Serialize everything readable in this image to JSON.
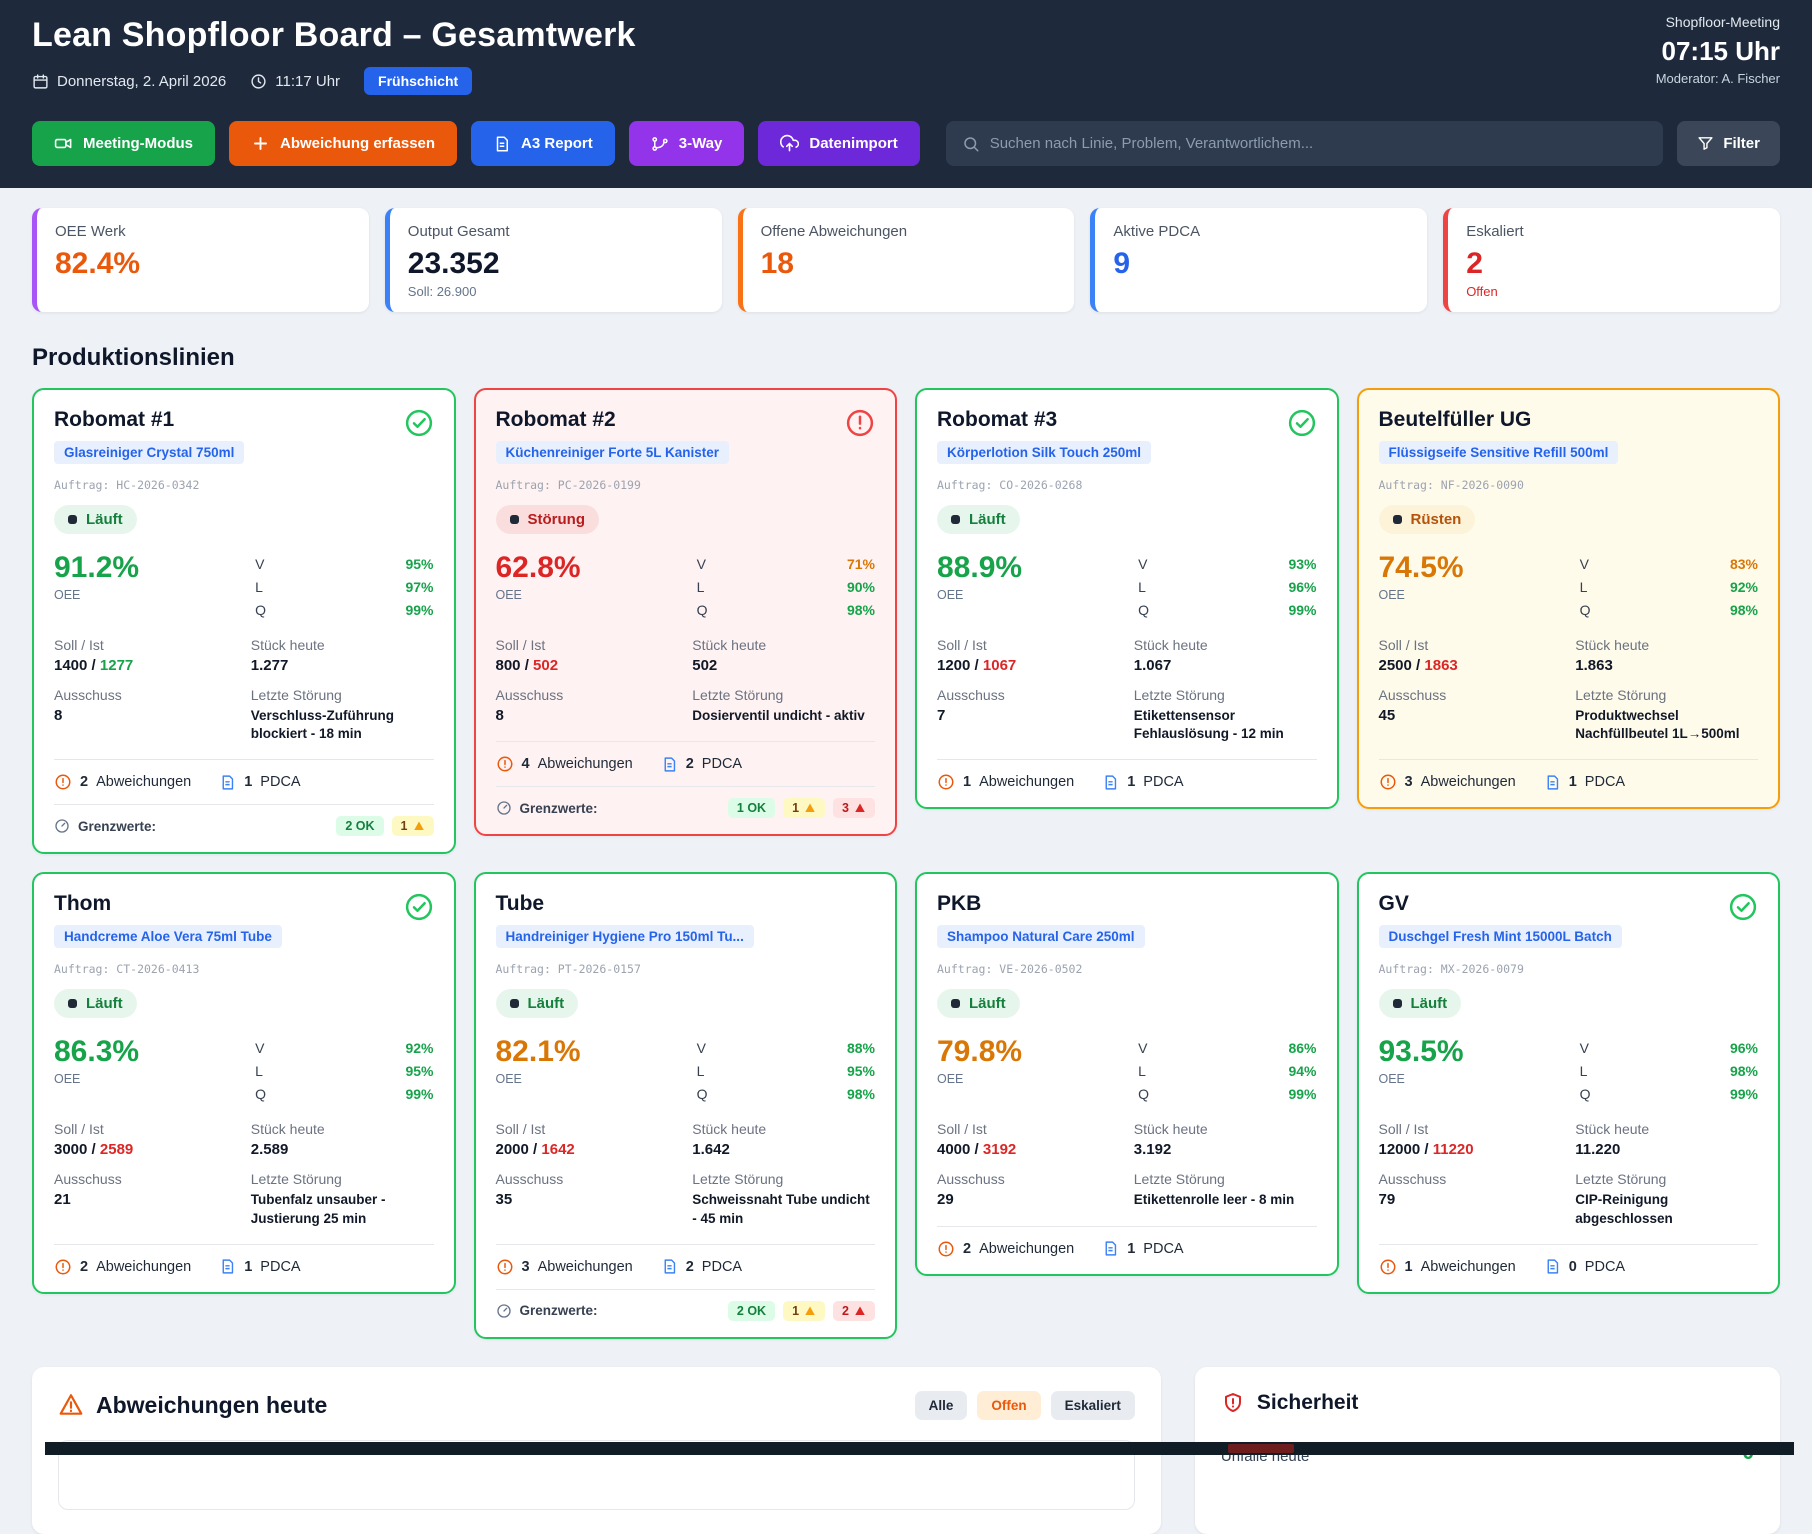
{
  "theme": {
    "header_bg": "#1e293b",
    "accent_green": "#22c55e",
    "accent_red": "#ef4444",
    "accent_amber": "#f59e0b",
    "bg_red_tint": "#fef2f2",
    "bg_amber_tint": "#fffbeb",
    "bg_white": "#ffffff",
    "val_green": "#16a34a",
    "val_red": "#dc2626",
    "val_amber": "#d97706",
    "val_dark": "#0f172a",
    "val_blue": "#2563eb",
    "val_orange": "#ea580c"
  },
  "header": {
    "title": "Lean Shopfloor Board – Gesamtwerk",
    "date": "Donnerstag, 2. April 2026",
    "time": "11:17 Uhr",
    "shift": "Frühschicht",
    "meeting_label": "Shopfloor-Meeting",
    "meeting_time": "07:15 Uhr",
    "moderator": "Moderator: A. Fischer"
  },
  "toolbar": {
    "buttons": [
      {
        "label": "Meeting-Modus",
        "icon": "video-icon",
        "color": "#16a34a"
      },
      {
        "label": "Abweichung erfassen",
        "icon": "plus-icon",
        "color": "#ea580c"
      },
      {
        "label": "A3 Report",
        "icon": "document-icon",
        "color": "#2563eb"
      },
      {
        "label": "3-Way",
        "icon": "branch-icon",
        "color": "#9333ea"
      },
      {
        "label": "Datenimport",
        "icon": "upload-cloud-icon",
        "color": "#6d28d9"
      }
    ],
    "search_placeholder": "Suchen nach Linie, Problem, Verantwortlichem...",
    "filter_label": "Filter"
  },
  "kpis": [
    {
      "label": "OEE Werk",
      "value": "82.4%",
      "sub": "",
      "accent": "#a855f7",
      "value_color": "#ea580c"
    },
    {
      "label": "Output Gesamt",
      "value": "23.352",
      "sub": "Soll: 26.900",
      "accent": "#3b82f6",
      "value_color": "#0f172a"
    },
    {
      "label": "Offene Abweichungen",
      "value": "18",
      "sub": "",
      "accent": "#f97316",
      "value_color": "#ea580c"
    },
    {
      "label": "Aktive PDCA",
      "value": "9",
      "sub": "",
      "accent": "#3b82f6",
      "value_color": "#2563eb"
    },
    {
      "label": "Eskaliert",
      "value": "2",
      "sub": "Offen",
      "accent": "#ef4444",
      "value_color": "#dc2626",
      "sub_red": true
    }
  ],
  "section_title": "Produktionslinien",
  "labels": {
    "oee": "OEE",
    "soll_ist": "Soll / Ist",
    "stueck": "Stück heute",
    "ausschuss": "Ausschuss",
    "stoerung": "Letzte Störung",
    "abweichungen": "Abweichungen",
    "pdca": "PDCA",
    "grenzwerte": "Grenzwerte:"
  },
  "lines": [
    {
      "name": "Robomat #1",
      "accent": "green",
      "icon": "check",
      "product": "Glasreiniger Crystal 750ml",
      "auftrag": "Auftrag: HC-2026-0342",
      "status": {
        "label": "Läuft",
        "type": "ok"
      },
      "oee": {
        "value": "91.2%",
        "state": "green"
      },
      "vlq": [
        {
          "k": "V",
          "v": "95%",
          "state": "green"
        },
        {
          "k": "L",
          "v": "97%",
          "state": "green"
        },
        {
          "k": "Q",
          "v": "99%",
          "state": "green"
        }
      ],
      "soll": "1400",
      "ist": "1277",
      "ist_state": "green",
      "stueck": "1.277",
      "ausschuss": "8",
      "stoerung": "Verschluss-Zuführung blockiert - 18 min",
      "abw": "2",
      "pdca": "1",
      "grenzwerte": {
        "ok": "2 OK",
        "warn": "1",
        "crit": null
      }
    },
    {
      "name": "Robomat #2",
      "accent": "red",
      "icon": "alert",
      "product": "Küchenreiniger Forte 5L Kanister",
      "auftrag": "Auftrag: PC-2026-0199",
      "status": {
        "label": "Störung",
        "type": "error"
      },
      "oee": {
        "value": "62.8%",
        "state": "red"
      },
      "vlq": [
        {
          "k": "V",
          "v": "71%",
          "state": "amber"
        },
        {
          "k": "L",
          "v": "90%",
          "state": "green"
        },
        {
          "k": "Q",
          "v": "98%",
          "state": "green"
        }
      ],
      "soll": "800",
      "ist": "502",
      "ist_state": "red",
      "stueck": "502",
      "ausschuss": "8",
      "stoerung": "Dosierventil undicht - aktiv",
      "abw": "4",
      "pdca": "2",
      "grenzwerte": {
        "ok": "1 OK",
        "warn": "1",
        "crit": "3"
      }
    },
    {
      "name": "Robomat #3",
      "accent": "green",
      "icon": "check",
      "product": "Körperlotion Silk Touch 250ml",
      "auftrag": "Auftrag: CO-2026-0268",
      "status": {
        "label": "Läuft",
        "type": "ok"
      },
      "oee": {
        "value": "88.9%",
        "state": "green"
      },
      "vlq": [
        {
          "k": "V",
          "v": "93%",
          "state": "green"
        },
        {
          "k": "L",
          "v": "96%",
          "state": "green"
        },
        {
          "k": "Q",
          "v": "99%",
          "state": "green"
        }
      ],
      "soll": "1200",
      "ist": "1067",
      "ist_state": "red",
      "stueck": "1.067",
      "ausschuss": "7",
      "stoerung": "Etikettensensor Fehlauslösung - 12 min",
      "abw": "1",
      "pdca": "1",
      "grenzwerte": null
    },
    {
      "name": "Beutelfüller UG",
      "accent": "amber",
      "icon": "none",
      "product": "Flüssigseife Sensitive Refill 500ml",
      "auftrag": "Auftrag: NF-2026-0090",
      "status": {
        "label": "Rüsten",
        "type": "setup"
      },
      "oee": {
        "value": "74.5%",
        "state": "amber"
      },
      "vlq": [
        {
          "k": "V",
          "v": "83%",
          "state": "amber"
        },
        {
          "k": "L",
          "v": "92%",
          "state": "green"
        },
        {
          "k": "Q",
          "v": "98%",
          "state": "green"
        }
      ],
      "soll": "2500",
      "ist": "1863",
      "ist_state": "red",
      "stueck": "1.863",
      "ausschuss": "45",
      "stoerung": "Produktwechsel Nachfüllbeutel 1L→500ml",
      "abw": "3",
      "pdca": "1",
      "grenzwerte": null
    },
    {
      "name": "Thom",
      "accent": "green",
      "icon": "check",
      "product": "Handcreme Aloe Vera 75ml Tube",
      "auftrag": "Auftrag: CT-2026-0413",
      "status": {
        "label": "Läuft",
        "type": "ok"
      },
      "oee": {
        "value": "86.3%",
        "state": "green"
      },
      "vlq": [
        {
          "k": "V",
          "v": "92%",
          "state": "green"
        },
        {
          "k": "L",
          "v": "95%",
          "state": "green"
        },
        {
          "k": "Q",
          "v": "99%",
          "state": "green"
        }
      ],
      "soll": "3000",
      "ist": "2589",
      "ist_state": "red",
      "stueck": "2.589",
      "ausschuss": "21",
      "stoerung": "Tubenfalz unsauber - Justierung 25 min",
      "abw": "2",
      "pdca": "1",
      "grenzwerte": null
    },
    {
      "name": "Tube",
      "accent": "green",
      "icon": "none",
      "product": "Handreiniger Hygiene Pro 150ml Tu...",
      "auftrag": "Auftrag: PT-2026-0157",
      "status": {
        "label": "Läuft",
        "type": "ok"
      },
      "oee": {
        "value": "82.1%",
        "state": "amber"
      },
      "vlq": [
        {
          "k": "V",
          "v": "88%",
          "state": "green"
        },
        {
          "k": "L",
          "v": "95%",
          "state": "green"
        },
        {
          "k": "Q",
          "v": "98%",
          "state": "green"
        }
      ],
      "soll": "2000",
      "ist": "1642",
      "ist_state": "red",
      "stueck": "1.642",
      "ausschuss": "35",
      "stoerung": "Schweissnaht Tube undicht - 45 min",
      "abw": "3",
      "pdca": "2",
      "grenzwerte": {
        "ok": "2 OK",
        "warn": "1",
        "crit": "2"
      }
    },
    {
      "name": "PKB",
      "accent": "green",
      "icon": "none",
      "product": "Shampoo Natural Care 250ml",
      "auftrag": "Auftrag: VE-2026-0502",
      "status": {
        "label": "Läuft",
        "type": "ok"
      },
      "oee": {
        "value": "79.8%",
        "state": "amber"
      },
      "vlq": [
        {
          "k": "V",
          "v": "86%",
          "state": "green"
        },
        {
          "k": "L",
          "v": "94%",
          "state": "green"
        },
        {
          "k": "Q",
          "v": "99%",
          "state": "green"
        }
      ],
      "soll": "4000",
      "ist": "3192",
      "ist_state": "red",
      "stueck": "3.192",
      "ausschuss": "29",
      "stoerung": "Etikettenrolle leer - 8 min",
      "abw": "2",
      "pdca": "1",
      "grenzwerte": null
    },
    {
      "name": "GV",
      "accent": "green",
      "icon": "check",
      "product": "Duschgel Fresh Mint 15000L Batch",
      "auftrag": "Auftrag: MX-2026-0079",
      "status": {
        "label": "Läuft",
        "type": "ok"
      },
      "oee": {
        "value": "93.5%",
        "state": "green"
      },
      "vlq": [
        {
          "k": "V",
          "v": "96%",
          "state": "green"
        },
        {
          "k": "L",
          "v": "98%",
          "state": "green"
        },
        {
          "k": "Q",
          "v": "99%",
          "state": "green"
        }
      ],
      "soll": "12000",
      "ist": "11220",
      "ist_state": "red",
      "stueck": "11.220",
      "ausschuss": "79",
      "stoerung": "CIP-Reinigung abgeschlossen",
      "abw": "1",
      "pdca": "0",
      "grenzwerte": null
    }
  ],
  "bottom": {
    "abweichungen": {
      "title": "Abweichungen heute",
      "filters": [
        {
          "label": "Alle",
          "active": false
        },
        {
          "label": "Offen",
          "active": true
        },
        {
          "label": "Eskaliert",
          "active": false
        }
      ]
    },
    "sicherheit": {
      "title": "Sicherheit",
      "label": "Unfälle heute",
      "value": "0"
    }
  }
}
